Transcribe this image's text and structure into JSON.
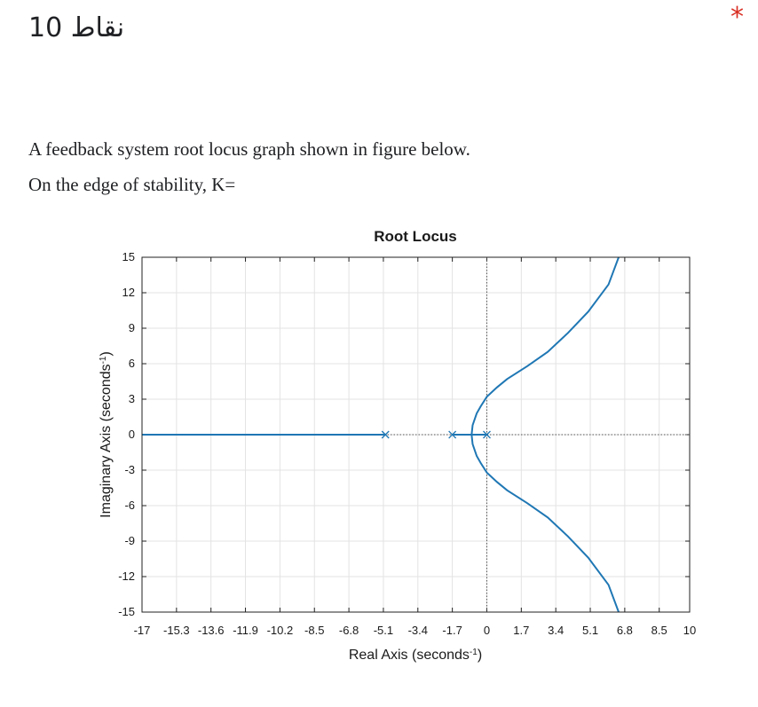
{
  "header": {
    "points": "10 نقاط",
    "required_mark": "*"
  },
  "question": {
    "line1": "A feedback system root locus graph  shown in figure below.",
    "line2": "On the edge of stability, K="
  },
  "chart_data": {
    "type": "line",
    "title": "Root Locus",
    "xlabel": "Real Axis (seconds",
    "ylabel": "Imaginary Axis (seconds",
    "label_exponent": "-1",
    "label_close": ")",
    "xlim": [
      -17,
      10
    ],
    "ylim": [
      -15,
      15
    ],
    "x_ticks": [
      -17,
      -15.3,
      -13.6,
      -11.9,
      -10.2,
      -8.5,
      -6.8,
      -5.1,
      -3.4,
      -1.7,
      0,
      1.7,
      3.4,
      5.1,
      6.8,
      8.5,
      10
    ],
    "x_tick_labels": [
      "-17",
      "-15.3",
      "-13.6",
      "-11.9",
      "-10.2",
      "-8.5",
      "-6.8",
      "-5.1",
      "-3.4",
      "-1.7",
      "0",
      "1.7",
      "3.4",
      "5.1",
      "6.8",
      "8.5",
      "10"
    ],
    "y_ticks": [
      15,
      12,
      9,
      6,
      3,
      0,
      -3,
      -6,
      -9,
      -12,
      -15
    ],
    "y_tick_labels": [
      "15",
      "12",
      "9",
      "6",
      "3",
      "0",
      "-3",
      "-6",
      "-9",
      "-12",
      "-15"
    ],
    "grid": true,
    "line_color": "#1f77b4",
    "poles": [
      [
        -5,
        0
      ],
      [
        -1.7,
        0
      ],
      [
        0,
        0
      ]
    ],
    "branches": [
      {
        "x": [
          -5,
          -10,
          -17
        ],
        "y": [
          0,
          0,
          0
        ]
      },
      {
        "x": [
          -1.7,
          -0.75
        ],
        "y": [
          0,
          0
        ]
      },
      {
        "x": [
          0,
          -0.75
        ],
        "y": [
          0,
          0
        ]
      },
      {
        "x": [
          -0.75,
          -0.7,
          -0.5,
          -0.3,
          0,
          0.5,
          1,
          2,
          3,
          4,
          5,
          6,
          6.5
        ],
        "y": [
          0,
          0.8,
          1.8,
          2.4,
          3.2,
          4.0,
          4.7,
          5.8,
          7.0,
          8.6,
          10.4,
          12.7,
          15
        ]
      },
      {
        "x": [
          -0.75,
          -0.7,
          -0.5,
          -0.3,
          0,
          0.5,
          1,
          2,
          3,
          4,
          5,
          6,
          6.5
        ],
        "y": [
          0,
          -0.8,
          -1.8,
          -2.4,
          -3.2,
          -4.0,
          -4.7,
          -5.8,
          -7.0,
          -8.6,
          -10.4,
          -12.7,
          -15
        ]
      }
    ]
  }
}
